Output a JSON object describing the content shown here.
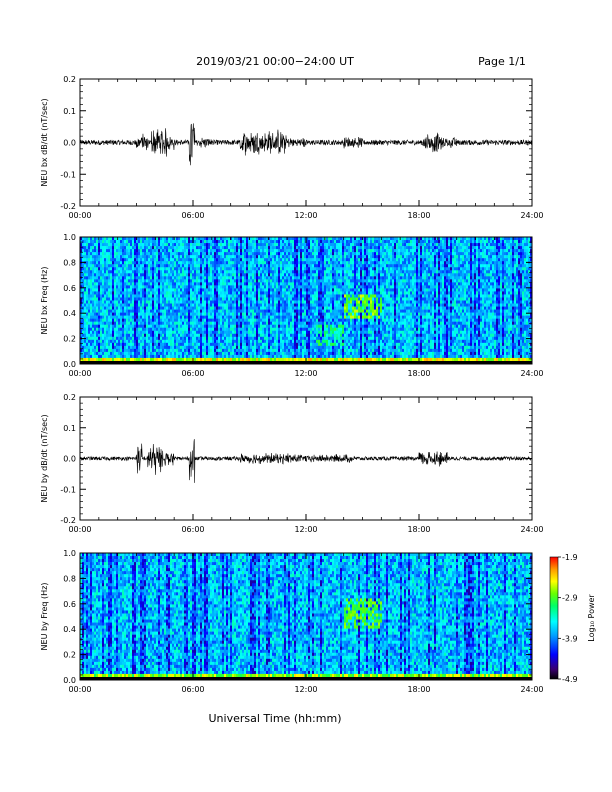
{
  "header": {
    "title": "2019/03/21  00:00−24:00 UT",
    "page": "Page 1/1"
  },
  "footer": {
    "xlabel": "Universal Time (hh:mm)"
  },
  "colors": {
    "trace": "#000000",
    "colormap": [
      "#000000",
      "#2a0066",
      "#0000ff",
      "#0099ff",
      "#00ffff",
      "#00ff66",
      "#66ff00",
      "#ffff00",
      "#ff9900",
      "#ff0000"
    ]
  },
  "chart_data": [
    {
      "type": "line",
      "ylabel": "NEU bx dB/dt (nT/sec)",
      "xlim": [
        0,
        24
      ],
      "ylim": [
        -0.2,
        0.2
      ],
      "x_ticks": [
        "00:00",
        "06:00",
        "12:00",
        "18:00",
        "24:00"
      ],
      "y_ticks": [
        "0.2",
        "0.1",
        "0.0",
        "-0.1",
        "-0.2"
      ],
      "background_amplitude": 0.008,
      "activity": [
        {
          "start": 3.0,
          "end": 3.6,
          "amplitude": 0.03
        },
        {
          "start": 3.8,
          "end": 4.6,
          "amplitude": 0.06
        },
        {
          "start": 4.6,
          "end": 5.0,
          "amplitude": 0.03
        },
        {
          "start": 5.8,
          "end": 6.1,
          "amplitude": 0.12
        },
        {
          "start": 6.2,
          "end": 7.0,
          "amplitude": 0.02
        },
        {
          "start": 8.5,
          "end": 11.0,
          "amplitude": 0.045
        },
        {
          "start": 11.0,
          "end": 12.0,
          "amplitude": 0.02
        },
        {
          "start": 14.0,
          "end": 15.0,
          "amplitude": 0.02
        },
        {
          "start": 18.2,
          "end": 19.2,
          "amplitude": 0.035
        },
        {
          "start": 19.2,
          "end": 20.0,
          "amplitude": 0.02
        }
      ]
    },
    {
      "type": "heatmap",
      "ylabel": "NEU bx Freq (Hz)",
      "xlim": [
        0,
        24
      ],
      "ylim": [
        0,
        1
      ],
      "x_ticks": [
        "00:00",
        "06:00",
        "12:00",
        "18:00",
        "24:00"
      ],
      "y_ticks": [
        "1.0",
        "0.8",
        "0.6",
        "0.4",
        "0.2",
        "0.0"
      ],
      "colorbar": {
        "label": "Log₁₀ Power",
        "ticks": [
          "-1.9",
          "-2.9",
          "-3.9",
          "-4.9"
        ],
        "range": [
          -4.9,
          -1.9
        ]
      },
      "features": [
        {
          "kind": "low-frequency band",
          "freq_max": 0.05,
          "level": -2.2
        },
        {
          "kind": "patch",
          "time": [
            14.0,
            16.0
          ],
          "freq": [
            0.35,
            0.55
          ],
          "level": -2.9
        },
        {
          "kind": "patch",
          "time": [
            12.5,
            14.0
          ],
          "freq": [
            0.15,
            0.3
          ],
          "level": -3.3
        }
      ]
    },
    {
      "type": "line",
      "ylabel": "NEU by dB/dt (nT/sec)",
      "xlim": [
        0,
        24
      ],
      "ylim": [
        -0.2,
        0.2
      ],
      "x_ticks": [
        "00:00",
        "06:00",
        "12:00",
        "18:00",
        "24:00"
      ],
      "y_ticks": [
        "0.2",
        "0.1",
        "0.0",
        "-0.1",
        "-0.2"
      ],
      "background_amplitude": 0.006,
      "activity": [
        {
          "start": 3.0,
          "end": 3.3,
          "amplitude": 0.06
        },
        {
          "start": 3.6,
          "end": 4.4,
          "amplitude": 0.06
        },
        {
          "start": 4.5,
          "end": 5.0,
          "amplitude": 0.03
        },
        {
          "start": 5.8,
          "end": 6.1,
          "amplitude": 0.1
        },
        {
          "start": 8.5,
          "end": 11.5,
          "amplitude": 0.02
        },
        {
          "start": 11.5,
          "end": 14.5,
          "amplitude": 0.015
        },
        {
          "start": 18.0,
          "end": 19.5,
          "amplitude": 0.03
        }
      ]
    },
    {
      "type": "heatmap",
      "ylabel": "NEU by Freq (Hz)",
      "xlim": [
        0,
        24
      ],
      "ylim": [
        0,
        1
      ],
      "x_ticks": [
        "00:00",
        "06:00",
        "12:00",
        "18:00",
        "24:00"
      ],
      "y_ticks": [
        "1.0",
        "0.8",
        "0.6",
        "0.4",
        "0.2",
        "0.0"
      ],
      "colorbar": {
        "label": "Log₁₀ Power",
        "ticks": [
          "-1.9",
          "-2.9",
          "-3.9",
          "-4.9"
        ],
        "range": [
          -4.9,
          -1.9
        ]
      },
      "features": [
        {
          "kind": "low-frequency band",
          "freq_max": 0.05,
          "level": -2.4
        },
        {
          "kind": "patch",
          "time": [
            14.0,
            16.0
          ],
          "freq": [
            0.4,
            0.65
          ],
          "level": -3.0
        }
      ]
    }
  ]
}
